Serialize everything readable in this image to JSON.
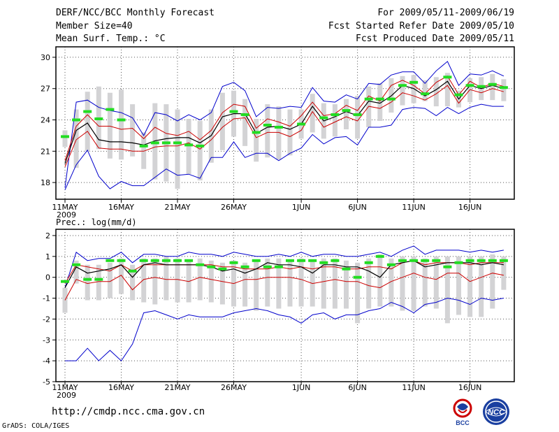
{
  "header": {
    "title": "DERF/NCC/BCC Monthly Forecast",
    "member_size": "Member Size=40",
    "variable": "Mean Surf. Temp.: °C",
    "fcst_period": "For 2009/05/11-2009/06/19",
    "fcst_started": "Fcst Started Refer Date 2009/05/10",
    "fcst_produced": "Fcst Produced Date 2009/05/11"
  },
  "footer": {
    "url": "http://cmdp.ncc.cma.gov.cn",
    "grads": "GrADS: COLA/IGES"
  },
  "logos": {
    "bcc_text": "BCC",
    "ncc_text": "NCC"
  },
  "colors": {
    "envelope": "#0000cc",
    "spread": "#cc0000",
    "mean": "#000000",
    "observed": "#22dd22",
    "box": "#d3d3d5"
  },
  "chart_data": [
    {
      "type": "line",
      "title": "Mean Surf. Temp.: °C",
      "ylim": [
        16.4,
        31
      ],
      "yticks": [
        18,
        21,
        24,
        27,
        30
      ],
      "ytick_labels": [
        "18",
        "21",
        "24",
        "27",
        "30"
      ],
      "grid": true,
      "x_tick_days": [
        1,
        6,
        11,
        16,
        22,
        27,
        32,
        37
      ],
      "x_tick_labels": [
        "11MAY",
        "16MAY",
        "21MAY",
        "26MAY",
        "1JUN",
        "6JUN",
        "11JUN",
        "16JUN"
      ],
      "year_label": "2009",
      "series": [
        {
          "name": "max",
          "values": [
            17.5,
            25.7,
            25.9,
            25.2,
            24.9,
            24.7,
            24.2,
            22.5,
            24.7,
            24.5,
            23.9,
            24.5,
            24.0,
            24.7,
            27.2,
            27.6,
            26.8,
            24.3,
            25.2,
            25.1,
            25.3,
            25.2,
            27.1,
            25.8,
            25.7,
            26.4,
            26.0,
            27.5,
            27.4,
            28.3,
            28.6,
            28.6,
            27.5,
            28.7,
            29.6,
            27.3,
            28.4,
            28.3,
            28.7,
            28.2
          ]
        },
        {
          "name": "upper",
          "values": [
            20.1,
            23.4,
            24.5,
            23.4,
            23.4,
            23.1,
            23.2,
            22.2,
            23.3,
            22.7,
            22.5,
            22.9,
            22.1,
            23.0,
            24.7,
            25.5,
            25.3,
            23.2,
            24.1,
            23.8,
            23.4,
            24.4,
            25.7,
            24.4,
            24.6,
            25.4,
            24.9,
            26.3,
            25.8,
            27.3,
            27.8,
            27.3,
            26.5,
            27.6,
            28.2,
            26.4,
            27.7,
            27.1,
            27.5,
            27.2
          ]
        },
        {
          "name": "mean",
          "values": [
            19.8,
            23.0,
            23.7,
            22.1,
            21.9,
            21.9,
            21.8,
            21.6,
            22.0,
            22.2,
            22.3,
            22.3,
            21.8,
            22.5,
            24.3,
            24.6,
            24.6,
            22.7,
            23.3,
            23.4,
            23.1,
            23.6,
            25.3,
            23.9,
            24.3,
            24.8,
            24.4,
            25.8,
            25.6,
            26.3,
            27.3,
            27.0,
            26.3,
            26.9,
            27.7,
            26.0,
            27.3,
            27.0,
            27.3,
            27.0
          ]
        },
        {
          "name": "lower",
          "values": [
            19.5,
            22.1,
            22.9,
            21.3,
            21.2,
            21.2,
            21.0,
            21.0,
            21.4,
            21.5,
            21.5,
            21.8,
            21.2,
            22.1,
            23.3,
            24.1,
            24.2,
            22.3,
            22.8,
            22.8,
            22.4,
            23.0,
            24.8,
            23.3,
            23.8,
            24.3,
            23.9,
            25.3,
            25.1,
            25.7,
            26.6,
            26.3,
            25.9,
            26.5,
            27.3,
            25.6,
            26.9,
            26.6,
            27.0,
            26.7
          ]
        },
        {
          "name": "min",
          "values": [
            17.3,
            19.7,
            21.1,
            18.6,
            17.4,
            18.1,
            17.7,
            17.7,
            18.5,
            19.3,
            18.7,
            18.8,
            18.4,
            20.4,
            20.4,
            21.9,
            20.4,
            20.8,
            20.8,
            20.1,
            20.8,
            21.3,
            22.6,
            21.7,
            22.3,
            22.4,
            21.6,
            23.3,
            23.3,
            23.5,
            25.0,
            25.2,
            25.1,
            24.4,
            25.2,
            24.6,
            25.2,
            25.5,
            25.3,
            25.3
          ]
        },
        {
          "name": "observed",
          "values": [
            22.4,
            24.0,
            24.8,
            24.1,
            25.0,
            24.0,
            null,
            21.5,
            21.8,
            21.8,
            21.8,
            21.6,
            21.5,
            null,
            null,
            24.8,
            24.5,
            22.8,
            23.5,
            23.3,
            null,
            23.6,
            null,
            24.2,
            24.5,
            24.9,
            24.5,
            26.0,
            26.0,
            26.0,
            27.3,
            27.6,
            26.5,
            null,
            28.1,
            26.4,
            27.3,
            27.2,
            27.4,
            27.1
          ]
        },
        {
          "name": "box_top",
          "values": [
            23.0,
            25.0,
            26.7,
            27.2,
            26.6,
            26.9,
            25.5,
            22.8,
            25.6,
            25.5,
            25.0,
            24.1,
            23.9,
            25.0,
            26.6,
            26.8,
            26.0,
            24.1,
            25.5,
            25.3,
            25.0,
            25.0,
            26.5,
            25.6,
            25.5,
            26.0,
            26.3,
            27.2,
            27.5,
            28.0,
            28.2,
            28.3,
            27.8,
            28.1,
            28.5,
            26.8,
            28.0,
            28.1,
            28.4,
            27.9
          ]
        },
        {
          "name": "box_bottom",
          "values": [
            21.4,
            19.4,
            21.0,
            21.2,
            20.3,
            20.2,
            20.5,
            19.3,
            18.3,
            18.1,
            17.4,
            18.8,
            18.2,
            19.9,
            21.1,
            22.4,
            21.5,
            20.0,
            20.4,
            20.2,
            20.6,
            22.2,
            22.8,
            22.2,
            22.4,
            23.1,
            22.2,
            23.3,
            23.9,
            24.7,
            25.4,
            25.6,
            25.8,
            25.3,
            25.3,
            25.2,
            25.7,
            25.9,
            25.9,
            25.8
          ]
        }
      ]
    },
    {
      "type": "line",
      "title": "Prec.: log(mm/d)",
      "ylim": [
        -5,
        2.3
      ],
      "yticks": [
        -5,
        -4,
        -3,
        -2,
        -1,
        0,
        1,
        2
      ],
      "ytick_labels": [
        "-5",
        "-4",
        "-3",
        "-2",
        "-1",
        "0",
        "1",
        "2"
      ],
      "grid": true,
      "x_tick_days": [
        1,
        6,
        11,
        16,
        22,
        27,
        32,
        37
      ],
      "x_tick_labels": [
        "11MAY",
        "16MAY",
        "21MAY",
        "26MAY",
        "1JUN",
        "6JUN",
        "11JUN",
        "16JUN"
      ],
      "year_label": "2009",
      "series": [
        {
          "name": "max",
          "values": [
            -0.5,
            1.2,
            0.8,
            0.9,
            0.9,
            1.2,
            0.7,
            1.1,
            1.1,
            1.0,
            1.0,
            1.2,
            1.1,
            1.1,
            1.0,
            1.2,
            1.1,
            1.0,
            1.0,
            1.1,
            1.0,
            1.2,
            1.0,
            1.1,
            1.1,
            1.0,
            1.0,
            1.1,
            1.2,
            1.0,
            1.3,
            1.5,
            1.1,
            1.3,
            1.3,
            1.3,
            1.2,
            1.3,
            1.2,
            1.3
          ]
        },
        {
          "name": "upper",
          "values": [
            -0.3,
            0.6,
            0.5,
            0.4,
            0.3,
            0.6,
            0.3,
            0.6,
            0.6,
            0.6,
            0.6,
            0.6,
            0.6,
            0.6,
            0.5,
            0.5,
            0.4,
            0.4,
            0.4,
            0.5,
            0.4,
            0.5,
            0.4,
            0.5,
            0.5,
            0.4,
            0.4,
            0.5,
            0.5,
            0.4,
            0.7,
            0.8,
            0.6,
            0.7,
            0.7,
            0.7,
            0.6,
            0.7,
            0.7,
            0.7
          ]
        },
        {
          "name": "mean",
          "values": [
            -0.5,
            0.5,
            0.2,
            0.3,
            0.4,
            0.6,
            0.0,
            0.6,
            0.7,
            0.6,
            0.6,
            0.6,
            0.6,
            0.5,
            0.3,
            0.4,
            0.2,
            0.4,
            0.7,
            0.6,
            0.6,
            0.5,
            0.2,
            0.6,
            0.6,
            0.5,
            0.5,
            0.3,
            0.0,
            0.6,
            0.7,
            0.8,
            0.5,
            0.6,
            0.7,
            0.7,
            0.7,
            0.6,
            0.7,
            0.6
          ]
        },
        {
          "name": "lower",
          "values": [
            -1.1,
            -0.1,
            -0.3,
            -0.2,
            -0.2,
            0.1,
            -0.6,
            -0.1,
            0.0,
            -0.1,
            -0.1,
            -0.2,
            0.0,
            -0.1,
            -0.2,
            -0.3,
            -0.1,
            -0.1,
            0.0,
            0.0,
            0.0,
            -0.1,
            -0.3,
            -0.2,
            -0.1,
            -0.2,
            -0.2,
            -0.4,
            -0.5,
            -0.2,
            0.0,
            0.2,
            0.0,
            -0.1,
            0.2,
            0.2,
            -0.2,
            0.0,
            0.2,
            0.1
          ]
        },
        {
          "name": "min",
          "values": [
            -4.0,
            -4.0,
            -3.4,
            -4.0,
            -3.5,
            -4.0,
            -3.2,
            -1.7,
            -1.6,
            -1.8,
            -2.0,
            -1.8,
            -1.9,
            -1.9,
            -1.9,
            -1.7,
            -1.6,
            -1.5,
            -1.6,
            -1.8,
            -1.9,
            -2.2,
            -1.8,
            -1.7,
            -2.0,
            -1.8,
            -1.8,
            -1.6,
            -1.5,
            -1.2,
            -1.4,
            -1.7,
            -1.3,
            -1.2,
            -1.0,
            -1.1,
            -1.3,
            -1.0,
            -1.1,
            -1.0
          ]
        },
        {
          "name": "observed",
          "values": [
            -0.2,
            0.6,
            -0.1,
            -0.1,
            0.8,
            0.8,
            0.3,
            0.8,
            0.8,
            0.8,
            0.8,
            0.8,
            0.6,
            0.5,
            0.4,
            0.7,
            0.5,
            0.8,
            0.5,
            0.5,
            0.8,
            0.8,
            0.8,
            0.7,
            0.8,
            0.4,
            0.0,
            0.7,
            1.0,
            0.6,
            0.8,
            0.8,
            0.8,
            0.8,
            0.5,
            0.7,
            0.8,
            0.8,
            0.8,
            0.8
          ]
        },
        {
          "name": "box_top",
          "values": [
            -0.5,
            0.8,
            0.6,
            0.6,
            0.7,
            0.9,
            0.6,
            0.9,
            0.9,
            1.0,
            0.9,
            0.8,
            0.9,
            0.8,
            0.7,
            0.8,
            0.7,
            0.8,
            0.9,
            0.9,
            0.8,
            0.9,
            0.8,
            0.9,
            0.9,
            0.8,
            0.7,
            0.9,
            1.1,
            0.9,
            1.0,
            1.0,
            0.9,
            1.0,
            1.0,
            1.0,
            1.0,
            1.0,
            1.1,
            1.0
          ]
        },
        {
          "name": "box_bottom",
          "values": [
            -1.7,
            -0.3,
            -1.1,
            -1.1,
            -1.0,
            -0.8,
            -1.1,
            -1.2,
            -1.3,
            -1.1,
            -1.2,
            -1.2,
            -1.1,
            -1.2,
            -1.3,
            -1.4,
            -1.4,
            -1.6,
            -1.4,
            -1.5,
            -1.4,
            -1.4,
            -1.4,
            -1.5,
            -1.5,
            -1.5,
            -2.2,
            -1.5,
            -1.4,
            -1.4,
            -1.6,
            -1.6,
            -1.4,
            -1.5,
            -2.2,
            -1.8,
            -1.9,
            -1.9,
            -1.5,
            -0.6
          ]
        }
      ]
    }
  ]
}
